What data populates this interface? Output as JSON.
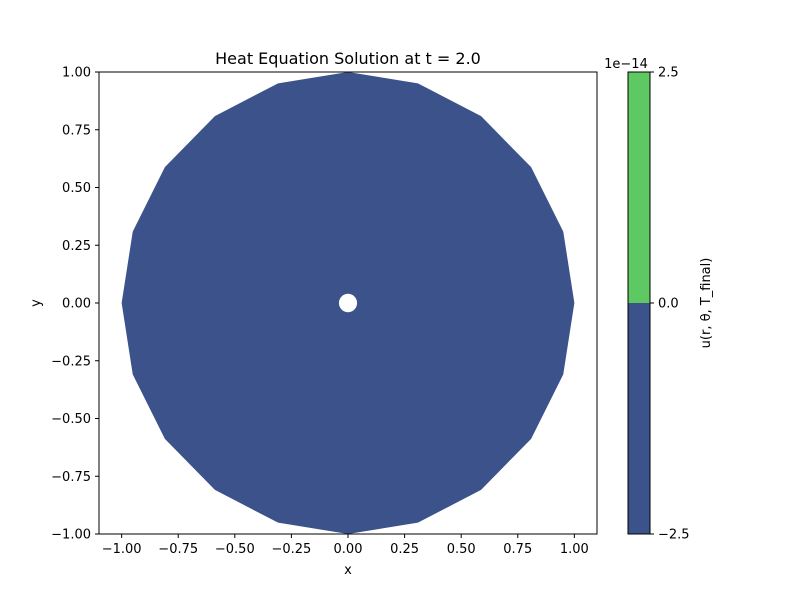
{
  "chart_data": {
    "type": "contour",
    "title": "Heat Equation Solution at t = 2.0",
    "xlabel": "x",
    "ylabel": "y",
    "xlim": [
      -1.1,
      1.1
    ],
    "ylim": [
      -1.0,
      1.0
    ],
    "xticks": [
      -1.0,
      -0.75,
      -0.5,
      -0.25,
      0.0,
      0.25,
      0.5,
      0.75,
      1.0
    ],
    "xtick_labels": [
      "−1.00",
      "−0.75",
      "−0.50",
      "−0.25",
      "0.00",
      "0.25",
      "0.50",
      "0.75",
      "1.00"
    ],
    "yticks": [
      -1.0,
      -0.75,
      -0.5,
      -0.25,
      0.0,
      0.25,
      0.5,
      0.75,
      1.0
    ],
    "ytick_labels": [
      "−1.00",
      "−0.75",
      "−0.50",
      "−0.25",
      "0.00",
      "0.25",
      "0.50",
      "0.75",
      "1.00"
    ],
    "grid": false,
    "domain": {
      "shape": "polar sector (polygonal, 20 angular segments) with wedge removed",
      "outer_radius": 1.0,
      "inner_radius": 0.04,
      "theta_start_deg": 0,
      "theta_end_deg": 342,
      "vertices_outer": [
        [
          1.0,
          0.0
        ],
        [
          0.951,
          0.309
        ],
        [
          0.809,
          0.588
        ],
        [
          0.588,
          0.809
        ],
        [
          0.309,
          0.951
        ],
        [
          0.0,
          1.0
        ],
        [
          -0.309,
          0.951
        ],
        [
          -0.588,
          0.809
        ],
        [
          -0.809,
          0.588
        ],
        [
          -0.951,
          0.309
        ],
        [
          -1.0,
          0.0
        ],
        [
          -0.951,
          -0.309
        ],
        [
          -0.809,
          -0.588
        ],
        [
          -0.588,
          -0.809
        ],
        [
          -0.309,
          -0.951
        ],
        [
          0.0,
          -1.0
        ],
        [
          0.309,
          -0.951
        ],
        [
          0.588,
          -0.809
        ],
        [
          0.809,
          -0.588
        ],
        [
          0.951,
          -0.309
        ]
      ]
    },
    "levels": [
      -2.5e-14,
      0.0,
      2.5e-14
    ],
    "fill_level_index": 0,
    "colorbar": {
      "label": "u(r, θ, T_final)",
      "offset_text": "1e−14",
      "ticks": [
        -2.5,
        0.0,
        2.5
      ],
      "tick_labels": [
        "−2.5",
        "0.0",
        "2.5"
      ],
      "colors": [
        "#3b528b",
        "#5ec962"
      ]
    }
  }
}
